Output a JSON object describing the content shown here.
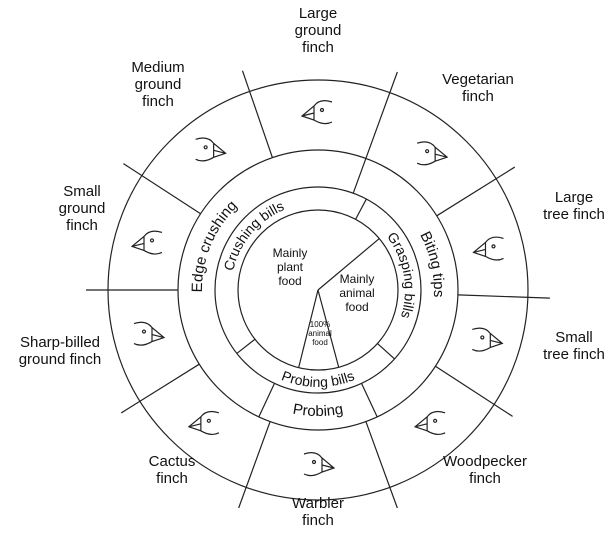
{
  "finches": [
    [
      "Large",
      "ground",
      "finch"
    ],
    [
      "Vegetarian",
      "finch"
    ],
    [
      "Large",
      "tree finch"
    ],
    [
      "Small",
      "tree finch"
    ],
    [
      "Woodpecker",
      "finch"
    ],
    [
      "Warbler",
      "finch"
    ],
    [
      "Cactus",
      "finch"
    ],
    [
      "Sharp-billed",
      "ground finch"
    ],
    [
      "Small",
      "ground",
      "finch"
    ],
    [
      "Medium",
      "ground",
      "finch"
    ]
  ],
  "middle_ring": [
    "Edge crushing",
    "Biting tips",
    "Probing"
  ],
  "inner_ring": [
    "Crushing bills",
    "Grasping bills",
    "Probing bills"
  ],
  "center": {
    "plant": [
      "Mainly",
      "plant",
      "food"
    ],
    "animal": [
      "Mainly",
      "animal",
      "food"
    ],
    "all_animal": [
      "100%",
      "animal",
      "food"
    ]
  }
}
